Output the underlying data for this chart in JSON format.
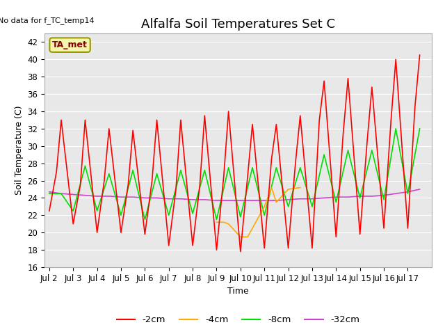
{
  "title": "Alfalfa Soil Temperatures Set C",
  "xlabel": "Time",
  "ylabel": "Soil Temperature (C)",
  "note": "No data for f_TC_temp14",
  "legend_label": "TA_met",
  "ylim": [
    16,
    43
  ],
  "yticks": [
    16,
    18,
    20,
    22,
    24,
    26,
    28,
    30,
    32,
    34,
    36,
    38,
    40,
    42
  ],
  "xtick_labels": [
    "Jul 2",
    "Jul 3",
    "Jul 4",
    "Jul 5",
    "Jul 6",
    "Jul 7",
    "Jul 8",
    "Jul 9",
    "Jul 10",
    "Jul 11",
    "Jul 12",
    "Jul 13",
    "Jul 14",
    "Jul 15",
    "Jul 16",
    "Jul 17"
  ],
  "series_2cm": {
    "color": "#ff0000",
    "linewidth": 1.2,
    "x": [
      0.0,
      0.3,
      0.5,
      1.0,
      1.3,
      1.5,
      2.0,
      2.3,
      2.5,
      3.0,
      3.3,
      3.5,
      4.0,
      4.3,
      4.5,
      5.0,
      5.3,
      5.5,
      6.0,
      6.3,
      6.5,
      7.0,
      7.3,
      7.5,
      8.0,
      8.3,
      8.5,
      9.0,
      9.3,
      9.5,
      10.0,
      10.3,
      10.5,
      11.0,
      11.3,
      11.5,
      12.0,
      12.3,
      12.5,
      13.0,
      13.3,
      13.5,
      14.0,
      14.3,
      14.5,
      15.0,
      15.3,
      15.5
    ],
    "y": [
      22.5,
      27.0,
      33.0,
      21.0,
      25.5,
      33.0,
      20.0,
      26.0,
      32.0,
      20.0,
      25.5,
      31.8,
      19.8,
      26.0,
      33.0,
      18.5,
      25.0,
      33.0,
      18.5,
      25.5,
      33.5,
      18.0,
      26.5,
      34.0,
      17.8,
      26.5,
      32.5,
      18.2,
      28.5,
      32.5,
      18.2,
      28.0,
      33.5,
      18.2,
      33.0,
      37.5,
      19.5,
      31.5,
      37.8,
      19.8,
      30.5,
      36.8,
      20.5,
      33.0,
      40.0,
      20.5,
      34.5,
      40.5
    ]
  },
  "series_8cm": {
    "color": "#00dd00",
    "linewidth": 1.2,
    "x": [
      0.0,
      0.5,
      1.0,
      1.5,
      2.0,
      2.5,
      3.0,
      3.5,
      4.0,
      4.5,
      5.0,
      5.5,
      6.0,
      6.5,
      7.0,
      7.5,
      8.0,
      8.5,
      9.0,
      9.5,
      10.0,
      10.5,
      11.0,
      11.5,
      12.0,
      12.5,
      13.0,
      13.5,
      14.0,
      14.5,
      15.0,
      15.5
    ],
    "y": [
      24.5,
      24.5,
      22.5,
      27.7,
      22.5,
      26.8,
      22.0,
      27.2,
      21.5,
      26.8,
      22.0,
      27.2,
      22.2,
      27.2,
      21.5,
      27.5,
      21.8,
      27.5,
      22.0,
      27.5,
      23.0,
      27.5,
      23.0,
      29.0,
      23.5,
      29.5,
      24.0,
      29.5,
      23.8,
      32.0,
      24.5,
      32.0
    ]
  },
  "series_32cm": {
    "color": "#cc44cc",
    "linewidth": 1.2,
    "x": [
      0.0,
      0.5,
      1.0,
      1.5,
      2.0,
      2.5,
      3.0,
      3.5,
      4.0,
      4.5,
      5.0,
      5.5,
      6.0,
      6.5,
      7.0,
      7.5,
      8.0,
      8.5,
      9.0,
      9.5,
      10.0,
      10.5,
      11.0,
      11.5,
      12.0,
      12.5,
      13.0,
      13.5,
      14.0,
      14.5,
      15.0,
      15.5
    ],
    "y": [
      24.7,
      24.5,
      24.4,
      24.3,
      24.2,
      24.2,
      24.1,
      24.1,
      24.0,
      24.0,
      23.9,
      23.9,
      23.8,
      23.8,
      23.7,
      23.7,
      23.7,
      23.7,
      23.7,
      23.7,
      23.8,
      23.9,
      23.9,
      24.0,
      24.1,
      24.1,
      24.2,
      24.2,
      24.3,
      24.5,
      24.7,
      25.0
    ]
  },
  "series_4cm": {
    "color": "#ffaa00",
    "linewidth": 1.2,
    "x": [
      7.0,
      7.3,
      7.5,
      8.0,
      8.3,
      8.5,
      9.0,
      9.3,
      9.5,
      10.0,
      10.5
    ],
    "y": [
      21.2,
      21.2,
      21.0,
      19.5,
      19.5,
      20.5,
      23.0,
      25.2,
      23.5,
      25.0,
      25.2
    ]
  },
  "plot_bg_color": "#e8e8e8",
  "title_fontsize": 13,
  "axis_label_fontsize": 9,
  "tick_fontsize": 8.5
}
